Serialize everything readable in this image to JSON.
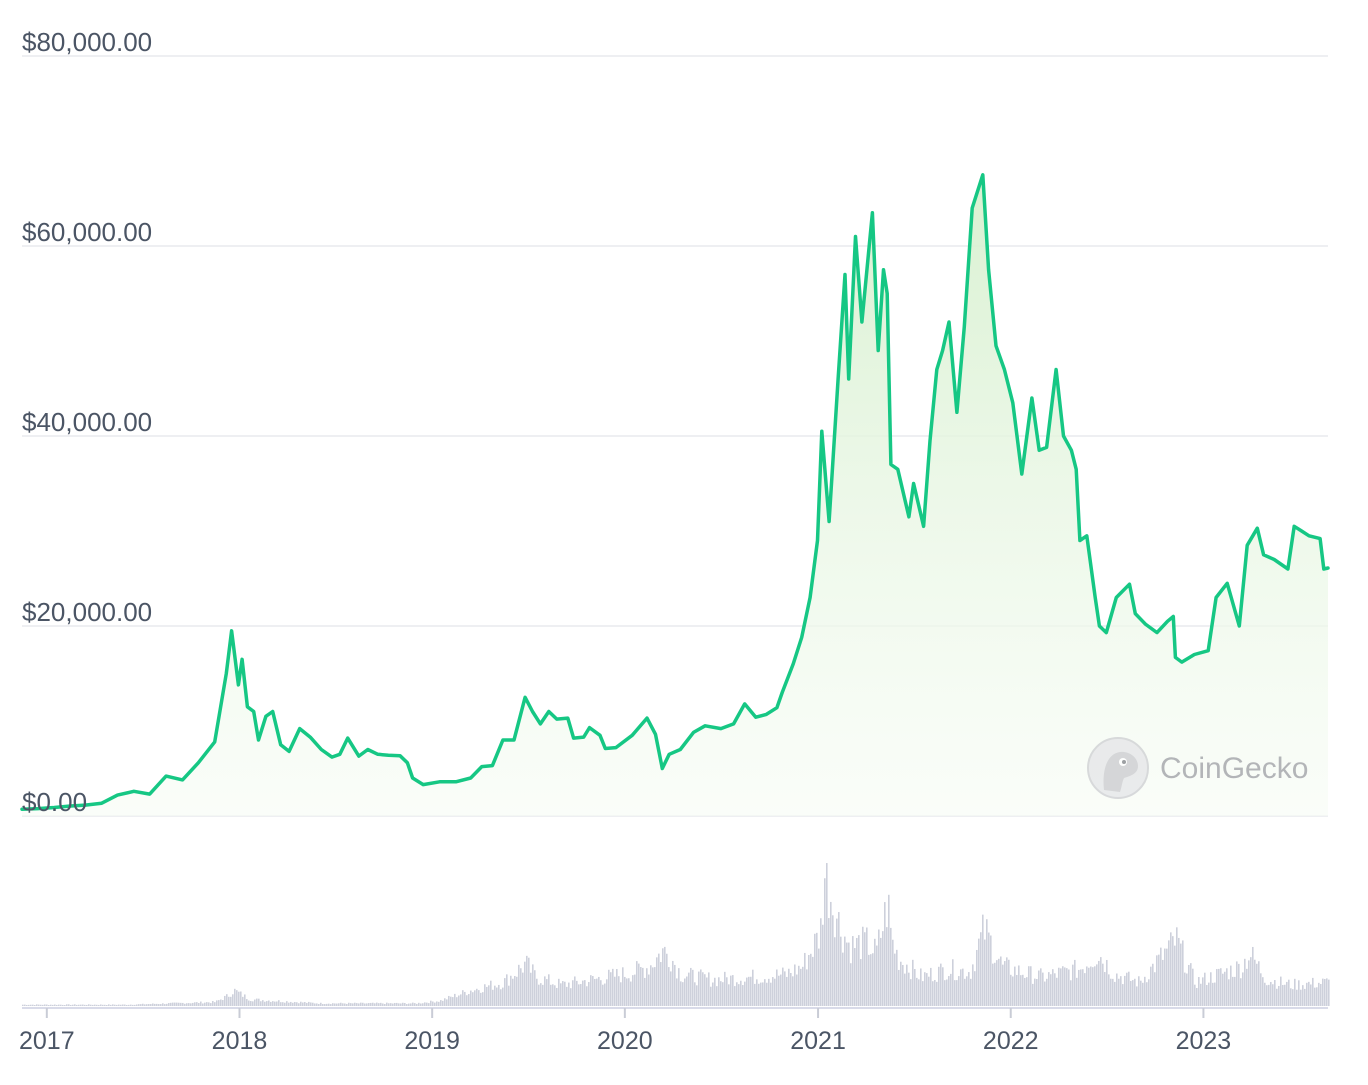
{
  "chart_data": {
    "type": "line",
    "title": "",
    "xlabel": "",
    "ylabel": "",
    "x_ticks": [
      "2017",
      "2018",
      "2019",
      "2020",
      "2021",
      "2022",
      "2023"
    ],
    "y_ticks": [
      "$0.00",
      "$20,000.00",
      "$40,000.00",
      "$60,000.00",
      "$80,000.00"
    ],
    "ylim": [
      0,
      80000
    ],
    "xlim": [
      "2016-11-15",
      "2023-08-25"
    ],
    "grid": true,
    "series": [
      {
        "role": "price",
        "color": "#16c784",
        "fill_color": "#e5f6e0",
        "x": [
          "2016-11-15",
          "2016-12-15",
          "2017-01-15",
          "2017-02-15",
          "2017-03-15",
          "2017-04-15",
          "2017-05-15",
          "2017-06-15",
          "2017-07-15",
          "2017-08-15",
          "2017-09-15",
          "2017-10-15",
          "2017-11-15",
          "2017-12-07",
          "2017-12-17",
          "2017-12-30",
          "2018-01-06",
          "2018-01-16",
          "2018-01-28",
          "2018-02-06",
          "2018-02-20",
          "2018-03-05",
          "2018-03-20",
          "2018-04-05",
          "2018-04-25",
          "2018-05-15",
          "2018-06-05",
          "2018-06-25",
          "2018-07-10",
          "2018-07-25",
          "2018-08-15",
          "2018-09-01",
          "2018-09-20",
          "2018-10-10",
          "2018-11-01",
          "2018-11-15",
          "2018-11-25",
          "2018-12-15",
          "2019-01-15",
          "2019-02-15",
          "2019-03-15",
          "2019-04-05",
          "2019-04-25",
          "2019-05-15",
          "2019-06-05",
          "2019-06-26",
          "2019-07-10",
          "2019-07-25",
          "2019-08-10",
          "2019-08-25",
          "2019-09-15",
          "2019-09-26",
          "2019-10-15",
          "2019-10-26",
          "2019-11-15",
          "2019-11-25",
          "2019-12-15",
          "2020-01-15",
          "2020-02-12",
          "2020-02-28",
          "2020-03-12",
          "2020-03-25",
          "2020-04-15",
          "2020-05-10",
          "2020-06-01",
          "2020-07-01",
          "2020-07-25",
          "2020-08-15",
          "2020-09-05",
          "2020-09-25",
          "2020-10-15",
          "2020-10-25",
          "2020-11-15",
          "2020-12-01",
          "2020-12-17",
          "2020-12-31",
          "2021-01-08",
          "2021-01-22",
          "2021-02-08",
          "2021-02-21",
          "2021-02-28",
          "2021-03-13",
          "2021-03-25",
          "2021-04-14",
          "2021-04-25",
          "2021-05-05",
          "2021-05-12",
          "2021-05-19",
          "2021-06-01",
          "2021-06-22",
          "2021-07-01",
          "2021-07-20",
          "2021-08-01",
          "2021-08-14",
          "2021-08-25",
          "2021-09-06",
          "2021-09-21",
          "2021-10-05",
          "2021-10-20",
          "2021-11-09",
          "2021-11-20",
          "2021-12-04",
          "2021-12-20",
          "2022-01-05",
          "2022-01-22",
          "2022-02-10",
          "2022-02-24",
          "2022-03-10",
          "2022-03-28",
          "2022-04-11",
          "2022-04-26",
          "2022-05-05",
          "2022-05-12",
          "2022-05-25",
          "2022-06-10",
          "2022-06-18",
          "2022-07-01",
          "2022-07-20",
          "2022-08-14",
          "2022-08-25",
          "2022-09-13",
          "2022-10-05",
          "2022-10-25",
          "2022-11-05",
          "2022-11-09",
          "2022-11-21",
          "2022-12-15",
          "2023-01-10",
          "2023-01-25",
          "2023-02-15",
          "2023-03-10",
          "2023-03-25",
          "2023-04-13",
          "2023-04-25",
          "2023-05-15",
          "2023-06-10",
          "2023-06-22",
          "2023-07-06",
          "2023-07-20",
          "2023-08-10",
          "2023-08-17",
          "2023-08-25"
        ],
        "values": [
          720,
          780,
          900,
          1050,
          1150,
          1350,
          2200,
          2600,
          2300,
          4200,
          3800,
          5600,
          7800,
          15000,
          19500,
          13800,
          16500,
          11500,
          11000,
          8000,
          10500,
          11000,
          7500,
          6800,
          9200,
          8300,
          7000,
          6200,
          6500,
          8200,
          6300,
          7000,
          6500,
          6400,
          6350,
          5600,
          4000,
          3300,
          3600,
          3600,
          4000,
          5200,
          5300,
          8000,
          8000,
          12500,
          11000,
          9700,
          11000,
          10200,
          10300,
          8200,
          8300,
          9300,
          8500,
          7100,
          7200,
          8500,
          10300,
          8600,
          5000,
          6500,
          7000,
          8800,
          9500,
          9200,
          9700,
          11800,
          10400,
          10700,
          11400,
          13000,
          16000,
          18800,
          23000,
          29000,
          40500,
          31000,
          46000,
          57000,
          46000,
          61000,
          52000,
          63500,
          49000,
          57500,
          55000,
          37000,
          36500,
          31500,
          35000,
          30500,
          39500,
          47000,
          49000,
          52000,
          42500,
          51500,
          64000,
          67500,
          57500,
          49500,
          47000,
          43500,
          36000,
          44000,
          38500,
          38800,
          47000,
          40000,
          38500,
          36500,
          29000,
          29500,
          23000,
          20000,
          19300,
          23000,
          24400,
          21300,
          20200,
          19300,
          20500,
          21000,
          16700,
          16200,
          17000,
          17400,
          23000,
          24500,
          20000,
          28500,
          30300,
          27500,
          27000,
          26000,
          30500,
          30000,
          29500,
          29200,
          26000,
          26100
        ]
      },
      {
        "role": "volume",
        "color": "#cdd0db",
        "x": [
          "2016-11-15",
          "2017-06-01",
          "2017-11-15",
          "2017-12-10",
          "2017-12-20",
          "2018-01-20",
          "2018-06-01",
          "2018-12-01",
          "2019-01-15",
          "2019-03-15",
          "2019-05-15",
          "2019-06-26",
          "2019-07-15",
          "2019-09-01",
          "2019-11-01",
          "2020-01-10",
          "2020-02-15",
          "2020-03-12",
          "2020-03-25",
          "2020-04-15",
          "2020-06-15",
          "2020-09-01",
          "2020-11-01",
          "2020-12-01",
          "2021-01-04",
          "2021-01-12",
          "2021-02-10",
          "2021-03-01",
          "2021-04-01",
          "2021-04-20",
          "2021-05-12",
          "2021-05-19",
          "2021-06-01",
          "2021-07-15",
          "2021-09-01",
          "2021-10-15",
          "2021-11-10",
          "2021-12-15",
          "2022-01-25",
          "2022-03-01",
          "2022-05-10",
          "2022-06-14",
          "2022-07-15",
          "2022-09-01",
          "2022-11-09",
          "2022-12-15",
          "2023-01-15",
          "2023-03-14",
          "2023-03-28",
          "2023-04-30",
          "2023-06-15",
          "2023-08-25"
        ],
        "values": [
          1,
          1,
          3,
          8,
          12,
          5,
          2,
          2,
          4,
          12,
          18,
          32,
          22,
          16,
          20,
          25,
          30,
          42,
          38,
          24,
          20,
          22,
          24,
          30,
          55,
          100,
          60,
          45,
          48,
          40,
          78,
          50,
          36,
          22,
          28,
          26,
          58,
          30,
          25,
          22,
          28,
          40,
          24,
          18,
          50,
          18,
          22,
          30,
          40,
          20,
          16,
          18
        ]
      }
    ]
  },
  "watermark": {
    "text": "CoinGecko",
    "icon": "coingecko-logo-icon"
  }
}
